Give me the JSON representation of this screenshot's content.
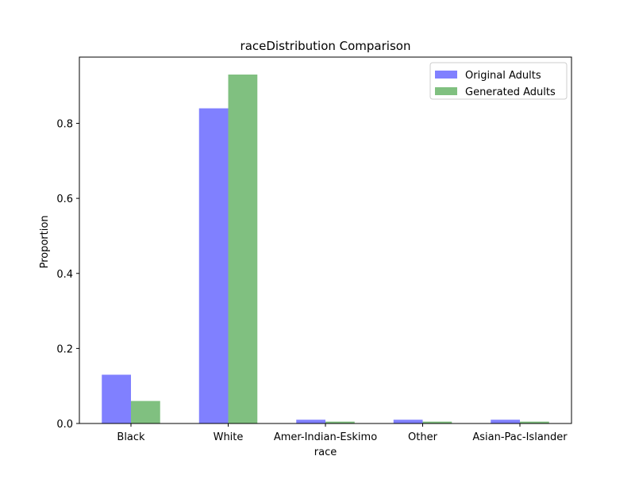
{
  "chart_data": {
    "type": "bar",
    "title": "raceDistribution Comparison",
    "xlabel": "race",
    "ylabel": "Proportion",
    "categories": [
      "Black",
      "White",
      "Amer-Indian-Eskimo",
      "Other",
      "Asian-Pac-Islander"
    ],
    "series": [
      {
        "name": "Original Adults",
        "color": "#8080ff",
        "values": [
          0.13,
          0.84,
          0.01,
          0.01,
          0.01
        ]
      },
      {
        "name": "Generated Adults",
        "color": "#80c080",
        "values": [
          0.06,
          0.93,
          0.005,
          0.005,
          0.005
        ]
      }
    ],
    "ylim": [
      0,
      0.9765
    ],
    "yticks": [
      0.0,
      0.2,
      0.4,
      0.6,
      0.8
    ],
    "ytick_labels": [
      "0.0",
      "0.2",
      "0.4",
      "0.6",
      "0.8"
    ],
    "grid": false,
    "legend_position": "top-right"
  }
}
